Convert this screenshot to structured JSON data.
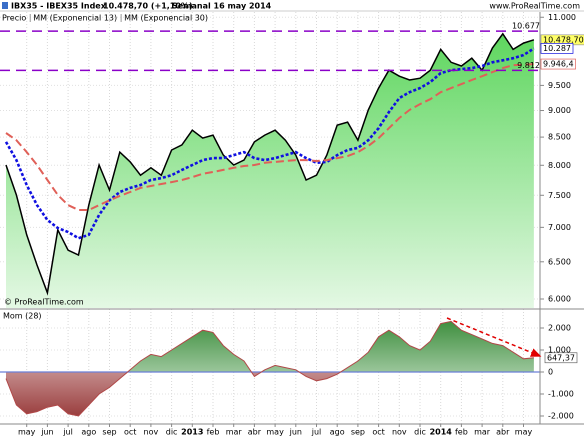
{
  "chart_data": [
    {
      "type": "line",
      "title": "IBX35 - IBEX35 Index",
      "subtitle": "10.478,70 (+1,10%)",
      "period": "Semanal 16 may 2014",
      "source": "www.ProRealTime.com",
      "credit": "© ProRealTime.com",
      "categories": [
        null,
        null,
        "may",
        null,
        "jun",
        null,
        "jul",
        null,
        "ago",
        null,
        "sep",
        null,
        "oct",
        null,
        "nov",
        null,
        "dic",
        null,
        "2013",
        null,
        "feb",
        null,
        "mar",
        null,
        "abr",
        null,
        "may",
        null,
        "jun",
        null,
        "jul",
        null,
        "ago",
        null,
        "sep",
        null,
        "oct",
        null,
        "nov",
        null,
        "dic",
        null,
        "2014",
        null,
        "feb",
        null,
        "mar",
        null,
        "abr",
        null,
        "may",
        null
      ],
      "series": [
        {
          "name": "Precio",
          "color": "#000000",
          "area": true,
          "values": [
            8005,
            7505,
            6888,
            6455,
            6080,
            6962,
            6664,
            6596,
            7343,
            8005,
            7584,
            8230,
            8058,
            7831,
            7956,
            7831,
            8268,
            8359,
            8628,
            8482,
            8537,
            8178,
            8005,
            8090,
            8413,
            8537,
            8628,
            8443,
            8178,
            7750,
            7831,
            8178,
            8722,
            8778,
            8443,
            9012,
            9444,
            9816,
            9690,
            9612,
            9648,
            9816,
            10266,
            9985,
            9905,
            10072,
            9816,
            10296,
            10616,
            10266,
            10405,
            10478.7
          ],
          "value_labels": [
            null,
            null,
            null,
            null,
            null,
            null,
            null,
            null,
            null,
            null,
            null,
            null,
            null,
            null,
            null,
            null,
            null,
            null,
            null,
            null,
            null,
            null,
            null,
            null,
            null,
            null,
            null,
            null,
            null,
            null,
            null,
            null,
            null,
            null,
            null,
            null,
            null,
            null,
            null,
            null,
            null,
            null,
            null,
            null,
            null,
            null,
            null,
            null,
            null,
            null,
            null,
            "10.478,70"
          ]
        },
        {
          "name": "MM (Exponencial 13)",
          "color": "#1010e0",
          "values": [
            8413,
            8090,
            7668,
            7343,
            7111,
            6990,
            6931,
            6839,
            6888,
            7190,
            7420,
            7553,
            7620,
            7668,
            7750,
            7782,
            7831,
            7921,
            8005,
            8090,
            8124,
            8124,
            8178,
            8230,
            8124,
            8090,
            8124,
            8178,
            8230,
            8124,
            8042,
            8058,
            8178,
            8268,
            8305,
            8443,
            8664,
            8970,
            9244,
            9363,
            9444,
            9567,
            9755,
            9816,
            9838,
            9860,
            9905,
            9985,
            10026,
            10072,
            10139,
            10287
          ],
          "value_labels": [
            null,
            null,
            null,
            null,
            null,
            null,
            null,
            null,
            null,
            null,
            null,
            null,
            null,
            null,
            null,
            null,
            null,
            null,
            null,
            null,
            null,
            null,
            null,
            null,
            null,
            null,
            null,
            null,
            null,
            null,
            null,
            null,
            null,
            null,
            null,
            null,
            null,
            null,
            null,
            null,
            null,
            null,
            null,
            null,
            null,
            null,
            null,
            null,
            null,
            null,
            null,
            "10.287"
          ]
        },
        {
          "name": "MM (Exponencial 30)",
          "color": "#e06058",
          "values": [
            8575,
            8443,
            8230,
            8005,
            7750,
            7505,
            7343,
            7266,
            7266,
            7343,
            7420,
            7490,
            7553,
            7620,
            7652,
            7684,
            7716,
            7750,
            7799,
            7854,
            7886,
            7921,
            7956,
            7988,
            8005,
            8042,
            8058,
            8074,
            8090,
            8090,
            8074,
            8090,
            8124,
            8162,
            8230,
            8339,
            8482,
            8664,
            8857,
            9012,
            9126,
            9222,
            9363,
            9444,
            9527,
            9612,
            9690,
            9775,
            9860,
            9923,
            9930,
            9946.4
          ],
          "value_labels": [
            null,
            null,
            null,
            null,
            null,
            null,
            null,
            null,
            null,
            null,
            null,
            null,
            null,
            null,
            null,
            null,
            null,
            null,
            null,
            null,
            null,
            null,
            null,
            null,
            null,
            null,
            null,
            null,
            null,
            null,
            null,
            null,
            null,
            null,
            null,
            null,
            null,
            null,
            null,
            null,
            null,
            null,
            null,
            null,
            null,
            null,
            null,
            null,
            null,
            null,
            null,
            "9.946,4"
          ]
        }
      ],
      "ylim": [
        5885,
        11125
      ],
      "log_y": true,
      "grid": true,
      "yticks": [
        {
          "value": 6000,
          "label": "6.000"
        },
        {
          "value": 6500,
          "label": "6.500"
        },
        {
          "value": 7000,
          "label": "7.000"
        },
        {
          "value": 7500,
          "label": "7.500"
        },
        {
          "value": 8000,
          "label": "8.000"
        },
        {
          "value": 8500,
          "label": "8.500"
        },
        {
          "value": 9000,
          "label": "9.000"
        },
        {
          "value": 9500,
          "label": "9.500"
        },
        {
          "value": 11000,
          "label": "11.000"
        }
      ],
      "hlines": [
        {
          "value": 10677,
          "label": "10.677"
        },
        {
          "value": 9812,
          "label": "9.812"
        }
      ],
      "hline_color": "#8a00c8"
    },
    {
      "type": "area",
      "title": "Mom (28)",
      "line_color": "#b04848",
      "zero_color": "#6b7fd6",
      "values": [
        -300,
        -1500,
        -1900,
        -1800,
        -1600,
        -1500,
        -1900,
        -2000,
        -1500,
        -1000,
        -700,
        -300,
        100,
        500,
        800,
        700,
        1000,
        1300,
        1600,
        1900,
        1800,
        1200,
        800,
        500,
        -200,
        100,
        300,
        200,
        100,
        -200,
        -400,
        -300,
        -100,
        200,
        500,
        900,
        1600,
        1900,
        1600,
        1200,
        1000,
        1400,
        2200,
        2300,
        1900,
        1700,
        1500,
        1300,
        1200,
        900,
        600,
        647.37
      ],
      "value_labels": [
        null,
        null,
        null,
        null,
        null,
        null,
        null,
        null,
        null,
        null,
        null,
        null,
        null,
        null,
        null,
        null,
        null,
        null,
        null,
        null,
        null,
        null,
        null,
        null,
        null,
        null,
        null,
        null,
        null,
        null,
        null,
        null,
        null,
        null,
        null,
        null,
        null,
        null,
        null,
        null,
        null,
        null,
        null,
        null,
        null,
        null,
        null,
        null,
        null,
        null,
        null,
        "647,37"
      ],
      "ylim": [
        -2364,
        2818
      ],
      "grid": true,
      "yticks": [
        {
          "value": 2000,
          "label": "2.000"
        },
        {
          "value": 1000,
          "label": "1.000"
        },
        0,
        {
          "value": -1000,
          "label": "-1.000"
        },
        {
          "value": -2000,
          "label": "-2.000"
        }
      ]
    }
  ]
}
